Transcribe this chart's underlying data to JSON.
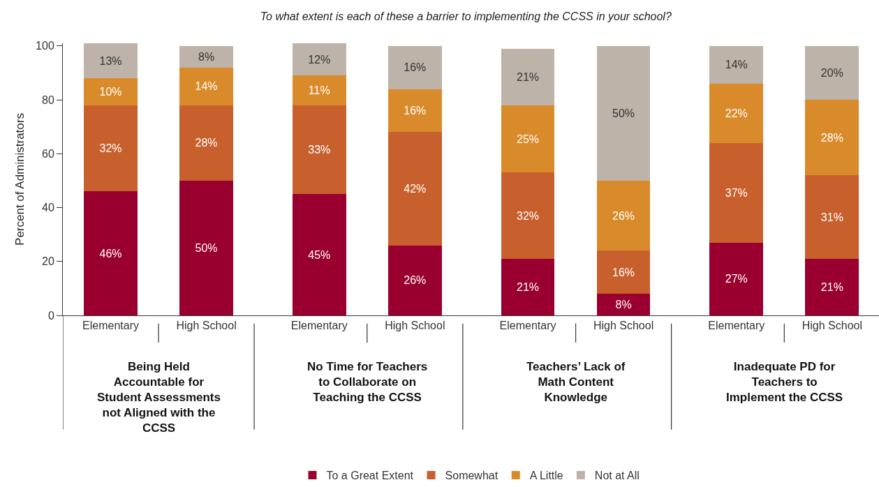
{
  "chart_data": {
    "type": "bar",
    "stacked": true,
    "title": "To what extent is each of these a barrier to implementing the CCSS in your school?",
    "ylabel": "Percent of Administrators",
    "categories": [
      "Elementary",
      "High School",
      "Elementary",
      "High School",
      "Elementary",
      "High School",
      "Elementary",
      "High School"
    ],
    "annotations": [
      "Being Held Accountable for Student Assessments not Aligned with the CCSS",
      "No Time for Teachers to Collaborate on Teaching the CCSS",
      "Teachers’ Lack of Math Content Knowledge",
      "Inadequate PD for Teachers to Implement the CCSS"
    ],
    "ylim": [
      0,
      101
    ],
    "yticks": [
      0,
      20,
      40,
      60,
      80,
      100
    ],
    "grid": false,
    "legend": "bottom",
    "series": [
      {
        "name": "To a Great Extent",
        "color": "#990030",
        "values": [
          46,
          50,
          45,
          26,
          21,
          8,
          27,
          21
        ],
        "value_labels": [
          "46%",
          "50%",
          "45%",
          "26%",
          "21%",
          "8%",
          "27%",
          "21%"
        ]
      },
      {
        "name": "Somewhat",
        "color": "#c8602e",
        "values": [
          32,
          28,
          33,
          42,
          32,
          16,
          37,
          31
        ],
        "value_labels": [
          "32%",
          "28%",
          "33%",
          "42%",
          "32%",
          "16%",
          "37%",
          "31%"
        ]
      },
      {
        "name": "A Little",
        "color": "#d98b2b",
        "values": [
          10,
          14,
          11,
          16,
          25,
          26,
          22,
          28
        ],
        "value_labels": [
          "10%",
          "14%",
          "11%",
          "16%",
          "25%",
          "26%",
          "22%",
          "28%"
        ]
      },
      {
        "name": "Not at All",
        "color": "#bdb3a8",
        "values": [
          13,
          8,
          12,
          16,
          21,
          50,
          14,
          20
        ],
        "value_labels": [
          "13%",
          "8%",
          "12%",
          "16%",
          "21%",
          "50%",
          "14%",
          "20%"
        ]
      }
    ]
  }
}
